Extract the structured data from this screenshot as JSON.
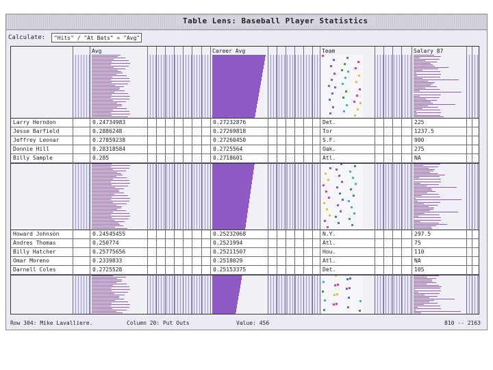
{
  "window": {
    "title": "Table Lens: Baseball Player Statistics"
  },
  "calc": {
    "label": "Calculate:",
    "expression": "\"Hits\" / \"At Bats\" = \"Avg\""
  },
  "columns": {
    "avg": "Avg",
    "career_avg": "Career Avg",
    "team": "Team",
    "salary": "Salary 87"
  },
  "focus_groups": [
    {
      "rows": [
        {
          "name": "Larry Herndon",
          "avg": "0.24734983",
          "career_avg": "0.27232876",
          "team": "Det.",
          "salary": "225"
        },
        {
          "name": "Jesse Barfield",
          "avg": "0.2886248",
          "career_avg": "0.27269818",
          "team": "Tor",
          "salary": "1237.5"
        },
        {
          "name": "Jeffrey Leonar",
          "avg": "0.27859238",
          "career_avg": "0.27260450",
          "team": "S.F.",
          "salary": "900"
        },
        {
          "name": "Donnie Hill",
          "avg": "0.28318584",
          "career_avg": "0.2725564",
          "team": "Oak.",
          "salary": "275"
        },
        {
          "name": "Billy Sample",
          "avg": "0.285",
          "career_avg": "0.2718601",
          "team": "Atl.",
          "salary": "NA"
        }
      ]
    },
    {
      "rows": [
        {
          "name": "Howard Johnson",
          "avg": "0.24545455",
          "career_avg": "0.25232068",
          "team": "N.Y.",
          "salary": "297.5"
        },
        {
          "name": "Andres Thomas",
          "avg": "0.250774",
          "career_avg": "0.2521994",
          "team": "Atl.",
          "salary": "75"
        },
        {
          "name": "Billy Hatcher",
          "avg": "0.25775656",
          "career_avg": "0.25211507",
          "team": "Hou.",
          "salary": "110"
        },
        {
          "name": "Omar Moreno",
          "avg": "0.2339833",
          "career_avg": "0.2518029",
          "team": "Atl.",
          "salary": "NA"
        },
        {
          "name": "Darnell Coles",
          "avg": "0.2725528",
          "career_avg": "0.25153375",
          "team": "Det.",
          "salary": "105"
        }
      ]
    }
  ],
  "status": {
    "row": "Row 304: Mike Lavalliere.",
    "column": "Column 20: Put Outs",
    "value": "Value: 456",
    "range": "810 -- 2163"
  },
  "colors": {
    "avg_bars": "#8e5bc4",
    "other_bars": "#7a78d2",
    "team_dots": [
      "#e0409a",
      "#3cb6c8",
      "#4a6ee0",
      "#e6c035",
      "#3c9a4c",
      "#8e5bc4"
    ]
  }
}
